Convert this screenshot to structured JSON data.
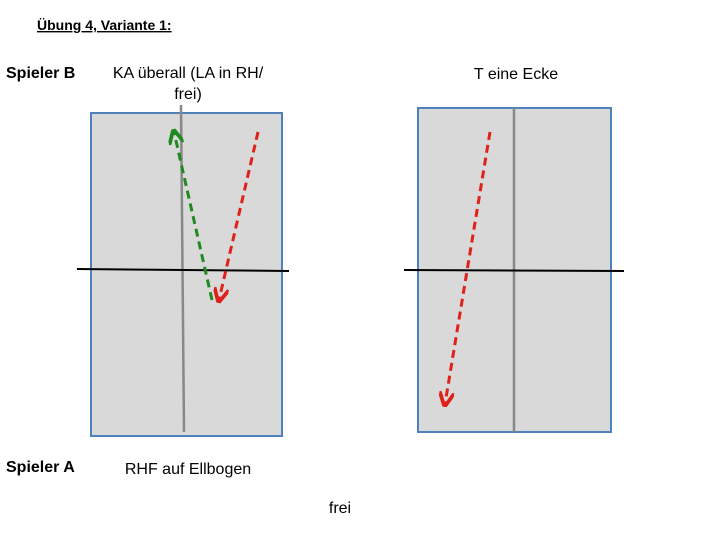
{
  "header": {
    "title": "Übung 4, Variante 1:"
  },
  "player_b": {
    "name": "Spieler B",
    "left_instruction": [
      "KA überall (LA in RH/",
      "frei)"
    ],
    "right_instruction": "T eine Ecke"
  },
  "player_a": {
    "name": "Spieler A",
    "instruction": "RHF auf Ellbogen"
  },
  "footer": {
    "note": "frei"
  }
}
